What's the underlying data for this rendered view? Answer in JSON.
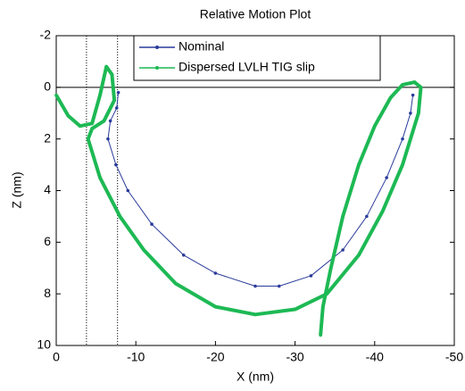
{
  "chart_data": {
    "type": "line",
    "title": "Relative Motion Plot",
    "x_label": "X (nm)",
    "y_label": "Z (nm)",
    "xlim": [
      0,
      -50
    ],
    "ylim": [
      10,
      -2
    ],
    "xticks": [
      0,
      -10,
      -20,
      -30,
      -40,
      -50
    ],
    "yticks": [
      -2,
      0,
      2,
      4,
      6,
      8,
      10
    ],
    "grid": false,
    "legend": "top",
    "reference_vlines": [
      -3.8,
      -7.7
    ],
    "reference_hline": 0,
    "series": [
      {
        "name": "Nominal",
        "color": "#2a3b9b",
        "x": [
          -7.8,
          -7.6,
          -6.8,
          -6.5,
          -7.5,
          -9,
          -12,
          -16,
          -20,
          -25,
          -28,
          -32,
          -36,
          -39,
          -41.5,
          -43.5,
          -44.5,
          -44.8
        ],
        "values": [
          0.2,
          0.8,
          1.3,
          2,
          3,
          4,
          5.3,
          6.5,
          7.2,
          7.7,
          7.7,
          7.3,
          6.3,
          5,
          3.5,
          2,
          1,
          0.3
        ]
      },
      {
        "name": "Dispersed LVLH TIG slip",
        "color": "#1db954",
        "x": [
          0,
          -1.5,
          -3,
          -4.5,
          -5.5,
          -6.3,
          -7,
          -7.3,
          -6,
          -4.5,
          -4,
          -5.5,
          -8,
          -11,
          -15,
          -20,
          -25,
          -30,
          -34,
          -38,
          -41,
          -43.5,
          -45.5,
          -45.8,
          -45,
          -43.5,
          -42,
          -40,
          -38,
          -36,
          -34.5,
          -33.5,
          -33.2
        ],
        "values": [
          0.3,
          1.1,
          1.5,
          1.4,
          0.3,
          -0.8,
          -0.5,
          0.5,
          1.3,
          1.6,
          2,
          3.5,
          5,
          6.3,
          7.6,
          8.5,
          8.8,
          8.6,
          8,
          6.5,
          4.8,
          3,
          1,
          0,
          -0.2,
          -0.1,
          0.4,
          1.5,
          3,
          5,
          7,
          8.5,
          9.6
        ]
      }
    ]
  }
}
